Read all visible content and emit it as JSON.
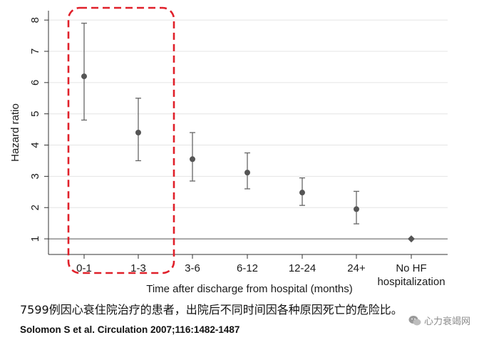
{
  "chart_data": {
    "type": "scatter",
    "subtype": "point-with-error-bars",
    "title": "",
    "xlabel": "Time after discharge from hospital (months)",
    "ylabel": "Hazard ratio",
    "ylim": [
      0.5,
      8.3
    ],
    "yticks": [
      1,
      2,
      3,
      4,
      5,
      6,
      7,
      8
    ],
    "grid": "horizontal",
    "reference_line": 1,
    "categories": [
      "0-1",
      "1-3",
      "3-6",
      "6-12",
      "12-24",
      "24+",
      "No HF\nhospitalization"
    ],
    "points": [
      {
        "category": "0-1",
        "hr": 6.2,
        "lower": 4.8,
        "upper": 7.9,
        "marker": "circle"
      },
      {
        "category": "1-3",
        "hr": 4.4,
        "lower": 3.5,
        "upper": 5.5,
        "marker": "circle"
      },
      {
        "category": "3-6",
        "hr": 3.55,
        "lower": 2.85,
        "upper": 4.4,
        "marker": "circle"
      },
      {
        "category": "6-12",
        "hr": 3.12,
        "lower": 2.6,
        "upper": 3.75,
        "marker": "circle"
      },
      {
        "category": "12-24",
        "hr": 2.48,
        "lower": 2.07,
        "upper": 2.95,
        "marker": "circle"
      },
      {
        "category": "24+",
        "hr": 1.95,
        "lower": 1.48,
        "upper": 2.52,
        "marker": "circle"
      },
      {
        "category": "No HF\nhospitalization",
        "hr": 1.0,
        "lower": null,
        "upper": null,
        "marker": "diamond"
      }
    ],
    "highlight": {
      "categories": [
        "0-1",
        "1-3"
      ],
      "style": "dashed-rounded-box",
      "color": "#e0202a"
    }
  },
  "caption": "7599例因心衰住院治疗的患者，出院后不同时间因各种原因死亡的危险比。",
  "citation": "Solomon S et al. Circulation 2007;116:1482-1487",
  "watermark": "心力衰竭网",
  "colors": {
    "marker": "#555555",
    "grid": "#e4e4e4",
    "axis": "#333333",
    "highlight": "#e0202a"
  }
}
